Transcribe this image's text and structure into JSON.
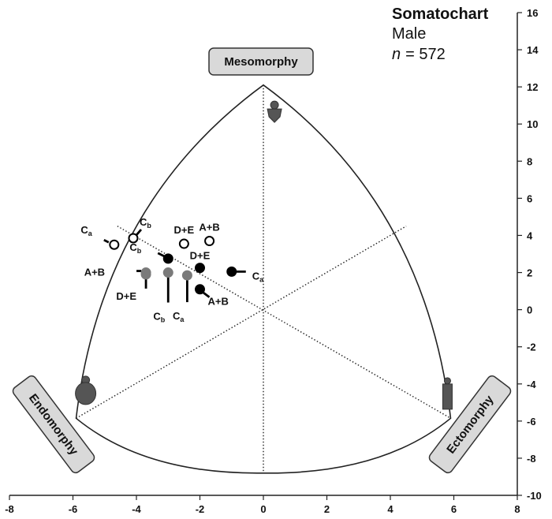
{
  "chart_data": {
    "type": "scatter",
    "title": "Somatochart",
    "subtitle": "Male",
    "n_label": "n",
    "n_value": "= 572",
    "xlim": [
      -8,
      8
    ],
    "ylim": [
      -10,
      16
    ],
    "xticks": [
      -8,
      -6,
      -4,
      -2,
      0,
      2,
      4,
      6,
      8
    ],
    "yticks": [
      -10,
      -8,
      -6,
      -4,
      -2,
      0,
      2,
      4,
      6,
      8,
      10,
      12,
      14,
      16
    ],
    "corners": {
      "mesomorphy": {
        "label": "Mesomorphy"
      },
      "endomorphy": {
        "label": "Endomorphy"
      },
      "ectomorphy": {
        "label": "Ectomorphy"
      }
    },
    "outline_vertices": {
      "top": [
        0,
        12.1
      ],
      "left": [
        -5.9,
        -5.85
      ],
      "right": [
        5.9,
        -5.85
      ],
      "bottom": [
        0,
        -8.8
      ]
    },
    "axes_lines": [
      {
        "from": [
          0,
          12.1
        ],
        "to": [
          0,
          -8.8
        ]
      },
      {
        "from": [
          -5.9,
          -5.85
        ],
        "to": [
          4.5,
          4.5
        ]
      },
      {
        "from": [
          -4.6,
          4.5
        ],
        "to": [
          5.9,
          -5.85
        ]
      }
    ],
    "series": [
      {
        "style": "open",
        "points": [
          {
            "x": -4.7,
            "y": 3.5,
            "label": "C",
            "sub": "a"
          },
          {
            "x": -4.1,
            "y": 3.85,
            "label": "C",
            "sub": "b"
          },
          {
            "x": -2.5,
            "y": 3.55,
            "label": "D+E"
          },
          {
            "x": -1.7,
            "y": 3.7,
            "label": "A+B"
          }
        ]
      },
      {
        "style": "black",
        "points": [
          {
            "x": -3.0,
            "y": 2.75,
            "label": "C",
            "sub": "b"
          },
          {
            "x": -2.0,
            "y": 2.25,
            "label": "D+E"
          },
          {
            "x": -1.0,
            "y": 2.05,
            "label": "C",
            "sub": "a"
          },
          {
            "x": -2.0,
            "y": 1.1,
            "label": "A+B"
          }
        ]
      },
      {
        "style": "gray",
        "points": [
          {
            "x": -3.7,
            "y": 2.0,
            "label": "A+B"
          },
          {
            "x": -3.7,
            "y": 1.9,
            "label": "D+E"
          },
          {
            "x": -3.0,
            "y": 2.0,
            "label": "C",
            "sub": "b"
          },
          {
            "x": -2.4,
            "y": 1.85,
            "label": "C",
            "sub": "a"
          }
        ]
      }
    ],
    "icons": [
      {
        "name": "mesomorph-figure-icon",
        "x": 0.35,
        "y": 10.6
      },
      {
        "name": "endomorph-figure-icon",
        "x": -5.6,
        "y": -4.3
      },
      {
        "name": "ectomorph-figure-icon",
        "x": 5.8,
        "y": -4.3
      }
    ]
  }
}
